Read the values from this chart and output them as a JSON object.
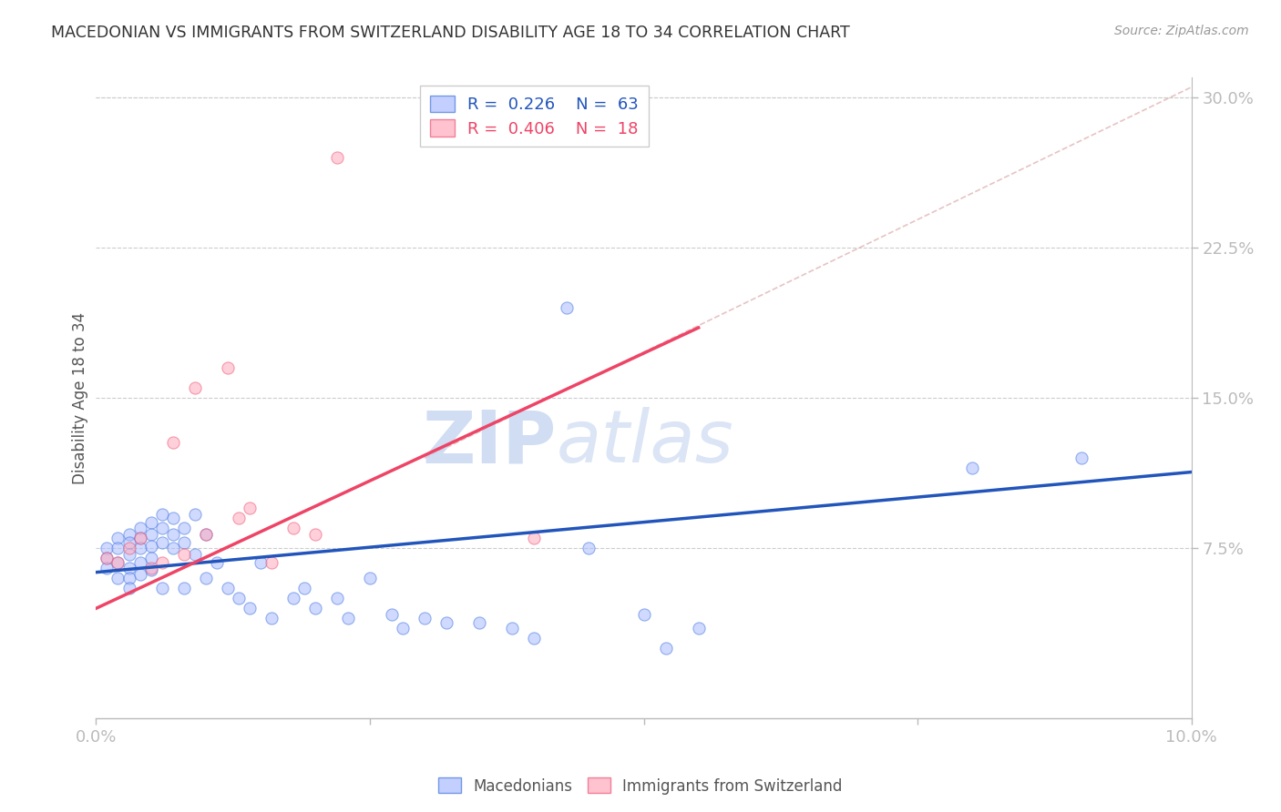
{
  "title": "MACEDONIAN VS IMMIGRANTS FROM SWITZERLAND DISABILITY AGE 18 TO 34 CORRELATION CHART",
  "source": "Source: ZipAtlas.com",
  "ylabel": "Disability Age 18 to 34",
  "xlim": [
    0.0,
    0.1
  ],
  "ylim": [
    -0.01,
    0.31
  ],
  "xtick_positions": [
    0.0,
    0.025,
    0.05,
    0.075,
    0.1
  ],
  "xtick_labels": [
    "0.0%",
    "",
    "",
    "",
    "10.0%"
  ],
  "yticks_right": [
    0.075,
    0.15,
    0.225,
    0.3
  ],
  "ytick_labels_right": [
    "7.5%",
    "15.0%",
    "22.5%",
    "30.0%"
  ],
  "grid_color": "#cccccc",
  "background_color": "#ffffff",
  "blue_fill": "#aabbff",
  "pink_fill": "#ffaabb",
  "blue_edge": "#4477dd",
  "pink_edge": "#ee5577",
  "blue_line_color": "#2255bb",
  "pink_line_color": "#ee4466",
  "dash_line_color": "#ddaaaa",
  "watermark_color": "#c8d8f0",
  "legend_label1": "Macedonians",
  "legend_label2": "Immigrants from Switzerland",
  "macedonians_x": [
    0.001,
    0.001,
    0.001,
    0.002,
    0.002,
    0.002,
    0.002,
    0.003,
    0.003,
    0.003,
    0.003,
    0.003,
    0.003,
    0.004,
    0.004,
    0.004,
    0.004,
    0.004,
    0.005,
    0.005,
    0.005,
    0.005,
    0.005,
    0.006,
    0.006,
    0.006,
    0.006,
    0.007,
    0.007,
    0.007,
    0.008,
    0.008,
    0.008,
    0.009,
    0.009,
    0.01,
    0.01,
    0.011,
    0.012,
    0.013,
    0.014,
    0.015,
    0.016,
    0.018,
    0.019,
    0.02,
    0.022,
    0.023,
    0.025,
    0.027,
    0.028,
    0.03,
    0.032,
    0.035,
    0.038,
    0.04,
    0.043,
    0.045,
    0.05,
    0.052,
    0.055,
    0.08,
    0.09
  ],
  "macedonians_y": [
    0.075,
    0.07,
    0.065,
    0.08,
    0.075,
    0.068,
    0.06,
    0.082,
    0.078,
    0.072,
    0.065,
    0.06,
    0.055,
    0.085,
    0.08,
    0.075,
    0.068,
    0.062,
    0.088,
    0.082,
    0.076,
    0.07,
    0.064,
    0.092,
    0.085,
    0.078,
    0.055,
    0.09,
    0.082,
    0.075,
    0.085,
    0.078,
    0.055,
    0.092,
    0.072,
    0.082,
    0.06,
    0.068,
    0.055,
    0.05,
    0.045,
    0.068,
    0.04,
    0.05,
    0.055,
    0.045,
    0.05,
    0.04,
    0.06,
    0.042,
    0.035,
    0.04,
    0.038,
    0.038,
    0.035,
    0.03,
    0.195,
    0.075,
    0.042,
    0.025,
    0.035,
    0.115,
    0.12
  ],
  "swiss_x": [
    0.001,
    0.002,
    0.003,
    0.004,
    0.005,
    0.006,
    0.007,
    0.008,
    0.009,
    0.01,
    0.012,
    0.013,
    0.014,
    0.016,
    0.018,
    0.02,
    0.022,
    0.04
  ],
  "swiss_y": [
    0.07,
    0.068,
    0.075,
    0.08,
    0.065,
    0.068,
    0.128,
    0.072,
    0.155,
    0.082,
    0.165,
    0.09,
    0.095,
    0.068,
    0.085,
    0.082,
    0.27,
    0.08
  ],
  "blue_trend_x": [
    0.0,
    0.1
  ],
  "blue_trend_y": [
    0.063,
    0.113
  ],
  "pink_trend_x": [
    0.0,
    0.055
  ],
  "pink_trend_y": [
    0.045,
    0.185
  ],
  "dash_trend_x": [
    0.03,
    0.1
  ],
  "dash_trend_y": [
    0.12,
    0.305
  ]
}
